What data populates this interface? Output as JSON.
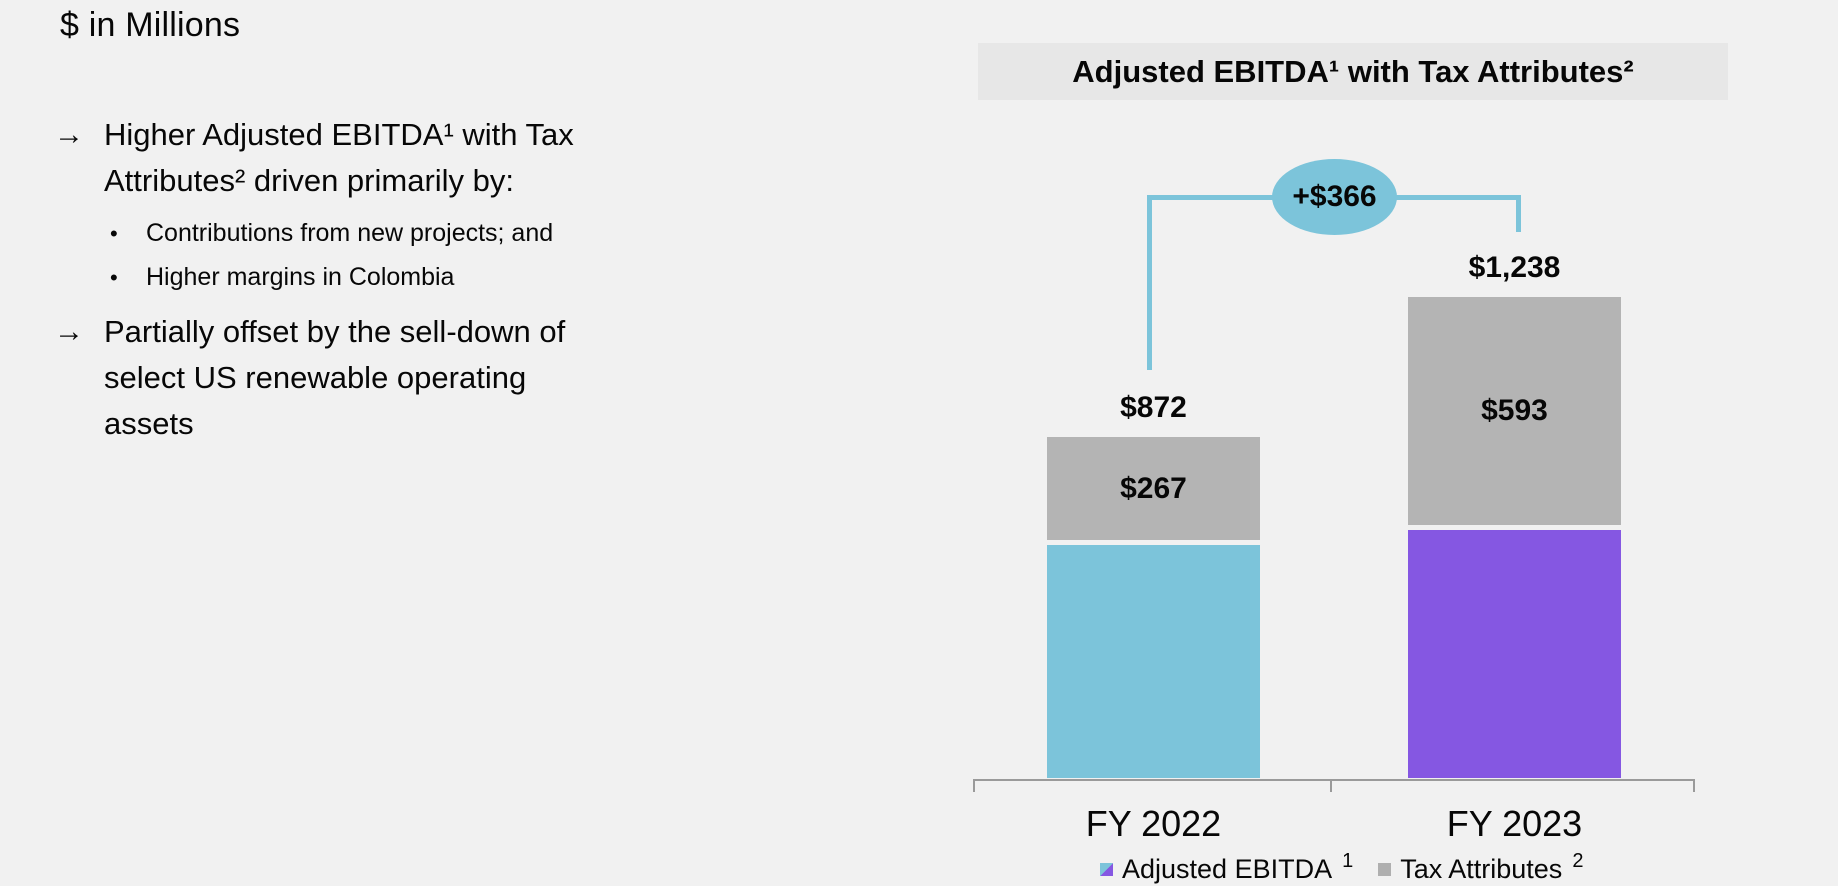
{
  "page": {
    "background": "#f1f1f1"
  },
  "left_panel": {
    "units_label": "$ in Millions",
    "items": [
      {
        "marker": "→",
        "text": "Higher Adjusted EBITDA¹ with Tax Attributes² driven primarily by:"
      },
      {
        "marker": "•",
        "text": "Contributions from new projects; and"
      },
      {
        "marker": "•",
        "text": "Higher margins in Colombia"
      },
      {
        "marker": "→",
        "text": "Partially offset by the sell-down of select US renewable operating assets"
      }
    ]
  },
  "chart": {
    "title": "Adjusted EBITDA¹ with Tax Attributes²",
    "delta_label": "+$366",
    "bars": [
      {
        "category": "FY 2022",
        "total_label": "$872",
        "tax_label": "$267"
      },
      {
        "category": "FY 2023",
        "total_label": "$1,238",
        "tax_label": "$593"
      }
    ],
    "legend": [
      {
        "label": "Adjusted EBITDA",
        "sup": "1"
      },
      {
        "label": "Tax Attributes",
        "sup": "2"
      }
    ]
  },
  "chart_data": {
    "type": "bar",
    "stacked": true,
    "title": "Adjusted EBITDA¹ with Tax Attributes²",
    "units": "$ in Millions",
    "categories": [
      "FY 2022",
      "FY 2023"
    ],
    "series": [
      {
        "name": "Adjusted EBITDA¹",
        "values": [
          605,
          645
        ]
      },
      {
        "name": "Tax Attributes²",
        "values": [
          267,
          593
        ]
      }
    ],
    "totals": [
      872,
      1238
    ],
    "data_labels": {
      "totals": [
        "$872",
        "$1,238"
      ],
      "tax_attributes": [
        "$267",
        "$593"
      ],
      "delta": "+$366"
    },
    "colors": {
      "ebitda_fy2022": "#7cc4da",
      "ebitda_fy2023": "#8557e2",
      "tax_attributes": "#b4b4b4",
      "delta_badge": "#7cc4da"
    },
    "legend_position": "bottom",
    "ylim": [
      0,
      1300
    ],
    "grid": false
  }
}
